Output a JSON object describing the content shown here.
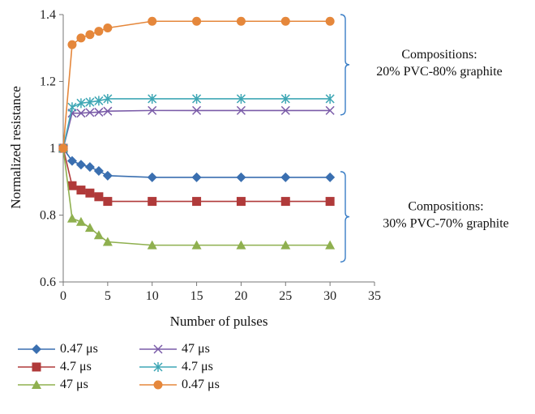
{
  "chart_data": {
    "type": "line",
    "title": "",
    "xlabel": "Number of pulses",
    "ylabel": "Normalized resistance",
    "xlim": [
      0,
      35
    ],
    "ylim": [
      0.6,
      1.4
    ],
    "xticks": [
      0,
      5,
      10,
      15,
      20,
      25,
      30,
      35
    ],
    "yticks": [
      0.6,
      0.8,
      1,
      1.2,
      1.4
    ],
    "xtick_labels": [
      "0",
      "5",
      "10",
      "15",
      "20",
      "25",
      "30",
      "35"
    ],
    "ytick_labels": [
      "0.6",
      "0.8",
      "1",
      "1.2",
      "1.4"
    ],
    "grid": false,
    "legend_position": "bottom-left",
    "x": [
      0,
      1,
      2,
      3,
      4,
      5,
      10,
      15,
      20,
      25,
      30
    ],
    "series": [
      {
        "name": "0.47 μs",
        "marker": "diamond",
        "color": "#3a6fb0",
        "values": [
          1.0,
          0.962,
          0.951,
          0.944,
          0.932,
          0.918,
          0.913,
          0.913,
          0.913,
          0.913,
          0.913
        ]
      },
      {
        "name": "4.7 μs",
        "marker": "square",
        "color": "#b03a3a",
        "values": [
          1.0,
          0.888,
          0.875,
          0.866,
          0.855,
          0.841,
          0.841,
          0.841,
          0.841,
          0.841,
          0.841
        ]
      },
      {
        "name": "47 μs",
        "marker": "triangle",
        "color": "#8fb04f",
        "values": [
          1.0,
          0.79,
          0.78,
          0.762,
          0.74,
          0.72,
          0.71,
          0.71,
          0.71,
          0.71,
          0.71
        ]
      },
      {
        "name": "47 μs",
        "marker": "x",
        "color": "#7a5ba8",
        "values": [
          1.0,
          1.105,
          1.105,
          1.107,
          1.108,
          1.111,
          1.113,
          1.113,
          1.113,
          1.113,
          1.113
        ]
      },
      {
        "name": "4.7 μs",
        "marker": "star",
        "color": "#3fa7b5",
        "values": [
          1.0,
          1.123,
          1.135,
          1.138,
          1.142,
          1.148,
          1.148,
          1.148,
          1.148,
          1.148,
          1.148
        ]
      },
      {
        "name": "0.47 μs",
        "marker": "circle",
        "color": "#e5873b",
        "values": [
          1.0,
          1.31,
          1.33,
          1.34,
          1.35,
          1.36,
          1.38,
          1.38,
          1.38,
          1.38,
          1.38
        ]
      }
    ],
    "annotations": [
      {
        "lines": [
          "Compositions:",
          "20% PVC-80% graphite"
        ],
        "bracket_range": [
          1.1,
          1.4
        ]
      },
      {
        "lines": [
          "Compositions:",
          "30% PVC-70% graphite"
        ],
        "bracket_range": [
          0.66,
          0.93
        ]
      }
    ],
    "bracket_color": "#3a7ec6"
  }
}
